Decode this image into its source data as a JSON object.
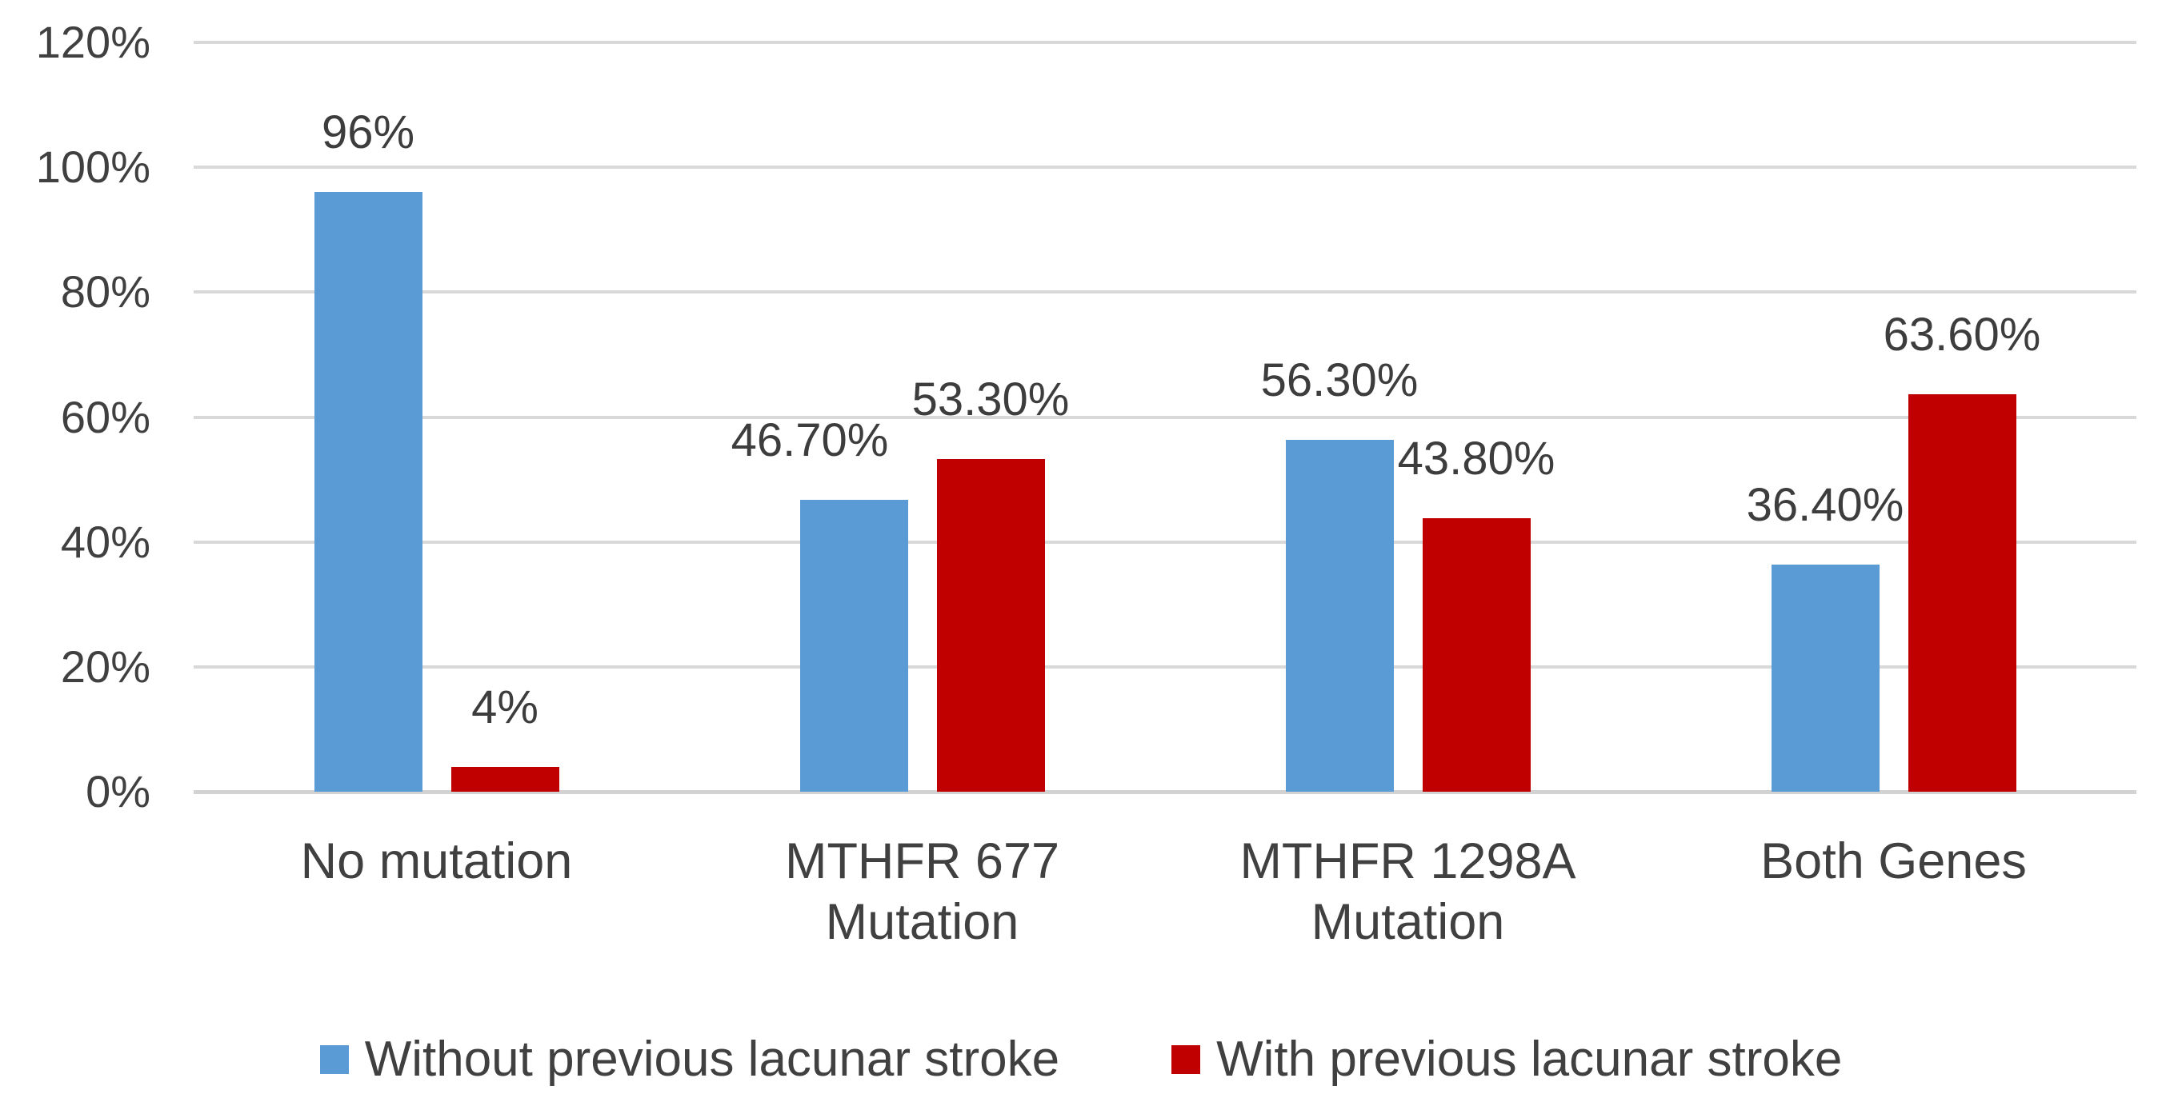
{
  "chart_data": {
    "type": "bar",
    "title": "",
    "categories": [
      "No mutation",
      "MTHFR 677 Mutation",
      "MTHFR 1298A Mutation",
      "Both Genes"
    ],
    "series": [
      {
        "name": "Without previous lacunar stroke",
        "color": "#5B9BD5",
        "values": [
          96,
          46.7,
          56.3,
          36.4
        ],
        "data_labels": [
          "96%",
          "46.70%",
          "56.30%",
          "36.40%"
        ]
      },
      {
        "name": "With previous lacunar stroke",
        "color": "#C00000",
        "values": [
          4,
          53.3,
          43.8,
          63.6
        ],
        "data_labels": [
          "4%",
          "53.30%",
          "43.80%",
          "63.60%"
        ]
      }
    ],
    "y_axis": {
      "min": 0,
      "max": 120,
      "ticks": [
        0,
        20,
        40,
        60,
        80,
        100,
        120
      ],
      "tick_labels": [
        "0%",
        "20%",
        "40%",
        "60%",
        "80%",
        "100%",
        "120%"
      ]
    },
    "grid": true,
    "legend_position": "bottom",
    "layout_hints": {
      "data_label_offsets": [
        {
          "series": 0,
          "category": 1,
          "dx": -55
        }
      ]
    }
  },
  "colors": {
    "series_1": "#5B9BD5",
    "series_2": "#C00000",
    "gridline": "#D9D9D9",
    "axis_line": "#D2D2D2",
    "text": "#404040"
  }
}
